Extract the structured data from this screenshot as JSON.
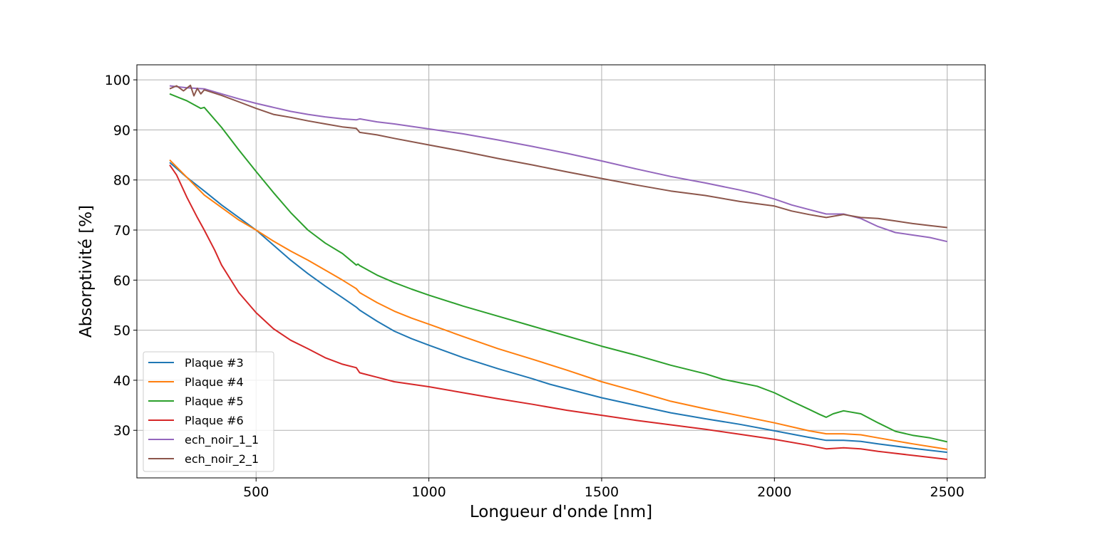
{
  "chart_data": {
    "type": "line",
    "title": "",
    "xlabel": "Longueur d'onde [nm]",
    "ylabel": "Absorptivité [%]",
    "xlim": [
      155,
      2610
    ],
    "ylim": [
      20.5,
      103
    ],
    "xticks": [
      500,
      1000,
      1500,
      2000,
      2500
    ],
    "yticks": [
      30,
      40,
      50,
      60,
      70,
      80,
      90,
      100
    ],
    "grid": true,
    "legend_position": "lower-left",
    "series": [
      {
        "name": "Plaque #3",
        "color": "#1f77b4",
        "points": [
          [
            250,
            83.5
          ],
          [
            300,
            80.5
          ],
          [
            350,
            77.8
          ],
          [
            400,
            75
          ],
          [
            450,
            72.5
          ],
          [
            500,
            70
          ],
          [
            550,
            67
          ],
          [
            600,
            64
          ],
          [
            650,
            61.3
          ],
          [
            700,
            58.8
          ],
          [
            750,
            56.5
          ],
          [
            790,
            54.6
          ],
          [
            800,
            54
          ],
          [
            850,
            51.8
          ],
          [
            900,
            49.8
          ],
          [
            950,
            48.3
          ],
          [
            1000,
            47
          ],
          [
            1100,
            44.5
          ],
          [
            1200,
            42.3
          ],
          [
            1300,
            40.3
          ],
          [
            1350,
            39.2
          ],
          [
            1400,
            38.3
          ],
          [
            1500,
            36.5
          ],
          [
            1600,
            35
          ],
          [
            1700,
            33.5
          ],
          [
            1800,
            32.3
          ],
          [
            1900,
            31.2
          ],
          [
            2000,
            29.9
          ],
          [
            2100,
            28.6
          ],
          [
            2150,
            28
          ],
          [
            2200,
            28
          ],
          [
            2250,
            27.8
          ],
          [
            2300,
            27.3
          ],
          [
            2400,
            26.4
          ],
          [
            2500,
            25.6
          ]
        ]
      },
      {
        "name": "Plaque #4",
        "color": "#ff7f0e",
        "points": [
          [
            250,
            84
          ],
          [
            300,
            80.5
          ],
          [
            350,
            77
          ],
          [
            400,
            74.5
          ],
          [
            450,
            72
          ],
          [
            500,
            70
          ],
          [
            550,
            67.8
          ],
          [
            600,
            65.8
          ],
          [
            650,
            64
          ],
          [
            700,
            62
          ],
          [
            750,
            60
          ],
          [
            790,
            58.3
          ],
          [
            800,
            57.5
          ],
          [
            850,
            55.5
          ],
          [
            900,
            53.8
          ],
          [
            950,
            52.4
          ],
          [
            1000,
            51.2
          ],
          [
            1100,
            48.7
          ],
          [
            1200,
            46.3
          ],
          [
            1300,
            44.2
          ],
          [
            1400,
            42
          ],
          [
            1500,
            39.7
          ],
          [
            1600,
            37.8
          ],
          [
            1700,
            35.8
          ],
          [
            1800,
            34.3
          ],
          [
            1900,
            32.9
          ],
          [
            2000,
            31.5
          ],
          [
            2100,
            29.9
          ],
          [
            2150,
            29.3
          ],
          [
            2200,
            29.3
          ],
          [
            2250,
            29.1
          ],
          [
            2300,
            28.5
          ],
          [
            2400,
            27.3
          ],
          [
            2500,
            26.2
          ]
        ]
      },
      {
        "name": "Plaque #5",
        "color": "#2ca02c",
        "points": [
          [
            250,
            97.2
          ],
          [
            300,
            95.8
          ],
          [
            340,
            94.3
          ],
          [
            350,
            94.5
          ],
          [
            400,
            90.5
          ],
          [
            450,
            86
          ],
          [
            500,
            81.7
          ],
          [
            550,
            77.5
          ],
          [
            600,
            73.5
          ],
          [
            650,
            70
          ],
          [
            700,
            67.4
          ],
          [
            750,
            65.3
          ],
          [
            790,
            63
          ],
          [
            795,
            63.2
          ],
          [
            800,
            62.9
          ],
          [
            850,
            61
          ],
          [
            900,
            59.5
          ],
          [
            950,
            58.2
          ],
          [
            1000,
            57
          ],
          [
            1100,
            54.8
          ],
          [
            1200,
            52.8
          ],
          [
            1300,
            50.8
          ],
          [
            1400,
            48.8
          ],
          [
            1500,
            46.8
          ],
          [
            1600,
            45
          ],
          [
            1700,
            43
          ],
          [
            1800,
            41.3
          ],
          [
            1850,
            40.2
          ],
          [
            1900,
            39.5
          ],
          [
            1950,
            38.8
          ],
          [
            2000,
            37.5
          ],
          [
            2050,
            35.8
          ],
          [
            2100,
            34.2
          ],
          [
            2130,
            33.2
          ],
          [
            2150,
            32.6
          ],
          [
            2170,
            33.3
          ],
          [
            2200,
            33.9
          ],
          [
            2250,
            33.3
          ],
          [
            2300,
            31.5
          ],
          [
            2350,
            29.8
          ],
          [
            2400,
            29
          ],
          [
            2450,
            28.5
          ],
          [
            2500,
            27.7
          ]
        ]
      },
      {
        "name": "Plaque #6",
        "color": "#d62728",
        "points": [
          [
            250,
            83
          ],
          [
            270,
            81
          ],
          [
            300,
            76.5
          ],
          [
            330,
            72.5
          ],
          [
            350,
            70
          ],
          [
            380,
            66
          ],
          [
            400,
            63
          ],
          [
            450,
            57.5
          ],
          [
            500,
            53.5
          ],
          [
            550,
            50.3
          ],
          [
            600,
            48
          ],
          [
            650,
            46.3
          ],
          [
            700,
            44.5
          ],
          [
            750,
            43.2
          ],
          [
            790,
            42.5
          ],
          [
            800,
            41.5
          ],
          [
            850,
            40.6
          ],
          [
            900,
            39.7
          ],
          [
            950,
            39.2
          ],
          [
            1000,
            38.7
          ],
          [
            1100,
            37.5
          ],
          [
            1200,
            36.3
          ],
          [
            1300,
            35.2
          ],
          [
            1400,
            34
          ],
          [
            1500,
            33
          ],
          [
            1600,
            32
          ],
          [
            1700,
            31.1
          ],
          [
            1800,
            30.2
          ],
          [
            1900,
            29.2
          ],
          [
            2000,
            28.2
          ],
          [
            2100,
            27
          ],
          [
            2150,
            26.3
          ],
          [
            2200,
            26.5
          ],
          [
            2250,
            26.3
          ],
          [
            2300,
            25.8
          ],
          [
            2400,
            25
          ],
          [
            2500,
            24.2
          ]
        ]
      },
      {
        "name": "ech_noir_1_1",
        "color": "#9467bd",
        "points": [
          [
            250,
            98.8
          ],
          [
            300,
            98.4
          ],
          [
            350,
            98.2
          ],
          [
            400,
            97.2
          ],
          [
            450,
            96.2
          ],
          [
            500,
            95.3
          ],
          [
            550,
            94.5
          ],
          [
            600,
            93.7
          ],
          [
            650,
            93.1
          ],
          [
            700,
            92.6
          ],
          [
            750,
            92.2
          ],
          [
            790,
            92
          ],
          [
            800,
            92.2
          ],
          [
            850,
            91.6
          ],
          [
            900,
            91.2
          ],
          [
            1000,
            90.2
          ],
          [
            1100,
            89.2
          ],
          [
            1200,
            88
          ],
          [
            1300,
            86.7
          ],
          [
            1400,
            85.3
          ],
          [
            1500,
            83.8
          ],
          [
            1600,
            82.2
          ],
          [
            1700,
            80.7
          ],
          [
            1800,
            79.4
          ],
          [
            1900,
            78
          ],
          [
            1950,
            77.2
          ],
          [
            2000,
            76.2
          ],
          [
            2050,
            75
          ],
          [
            2100,
            74.1
          ],
          [
            2150,
            73.2
          ],
          [
            2200,
            73.2
          ],
          [
            2250,
            72.3
          ],
          [
            2300,
            70.7
          ],
          [
            2350,
            69.5
          ],
          [
            2400,
            69
          ],
          [
            2450,
            68.5
          ],
          [
            2500,
            67.7
          ]
        ]
      },
      {
        "name": "ech_noir_2_1",
        "color": "#8c564b",
        "points": [
          [
            250,
            98.2
          ],
          [
            270,
            98.8
          ],
          [
            290,
            97.8
          ],
          [
            310,
            98.9
          ],
          [
            320,
            96.8
          ],
          [
            330,
            98.3
          ],
          [
            340,
            97.2
          ],
          [
            350,
            98
          ],
          [
            400,
            96.9
          ],
          [
            450,
            95.6
          ],
          [
            500,
            94.3
          ],
          [
            550,
            93.1
          ],
          [
            600,
            92.5
          ],
          [
            650,
            91.8
          ],
          [
            700,
            91.2
          ],
          [
            750,
            90.6
          ],
          [
            790,
            90.3
          ],
          [
            800,
            89.5
          ],
          [
            850,
            89
          ],
          [
            900,
            88.3
          ],
          [
            1000,
            87
          ],
          [
            1100,
            85.7
          ],
          [
            1200,
            84.3
          ],
          [
            1300,
            83
          ],
          [
            1350,
            82.3
          ],
          [
            1400,
            81.6
          ],
          [
            1500,
            80.3
          ],
          [
            1600,
            79
          ],
          [
            1700,
            77.8
          ],
          [
            1800,
            76.9
          ],
          [
            1900,
            75.7
          ],
          [
            2000,
            74.8
          ],
          [
            2050,
            73.8
          ],
          [
            2100,
            73.1
          ],
          [
            2150,
            72.5
          ],
          [
            2200,
            73.1
          ],
          [
            2250,
            72.5
          ],
          [
            2300,
            72.3
          ],
          [
            2350,
            71.8
          ],
          [
            2400,
            71.3
          ],
          [
            2450,
            70.9
          ],
          [
            2500,
            70.5
          ]
        ]
      }
    ]
  }
}
